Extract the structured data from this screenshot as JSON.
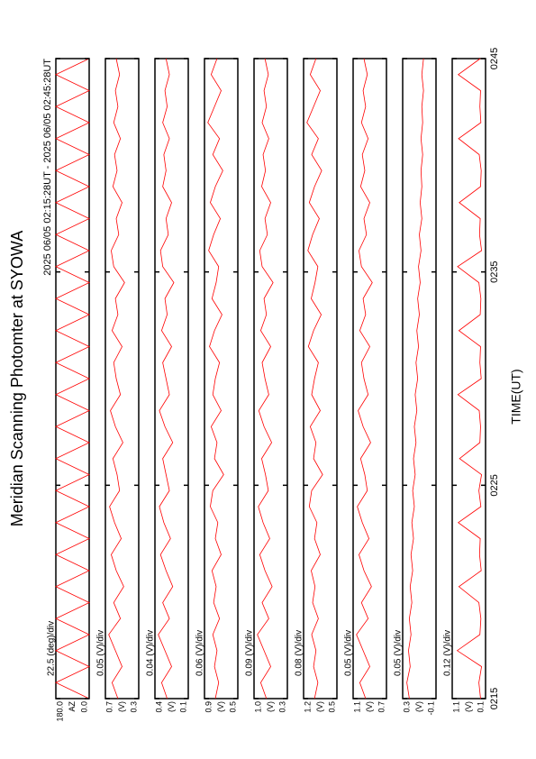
{
  "chart_data": {
    "type": "line",
    "title": "Meridian Scanning Photomter at SYOWA",
    "subtitle": "2025 06/05 02:15:28UT - 2025 06/05 02:45:28UT",
    "x_label": "TIME(UT)",
    "xlim": [
      15,
      45
    ],
    "xticks": [
      {
        "value": 15,
        "label": "0215"
      },
      {
        "value": 25,
        "label": "0225"
      },
      {
        "value": 35,
        "label": "0235"
      },
      {
        "value": 45,
        "label": "0245"
      }
    ],
    "x": [
      15,
      15.75,
      16.5,
      17.25,
      18,
      18.75,
      19.5,
      20.25,
      21,
      21.75,
      22.5,
      23.25,
      24,
      24.75,
      25.5,
      26.25,
      27,
      27.75,
      28.5,
      29.25,
      30,
      30.75,
      31.5,
      32.25,
      33,
      33.75,
      34.5,
      35.25,
      36,
      36.75,
      37.5,
      38.25,
      39,
      39.75,
      40.5,
      41.25,
      42,
      42.75,
      43.5,
      44.25,
      45
    ],
    "panels": [
      {
        "scale": "22.5 (deg)/div",
        "unit": "AZ",
        "color": "#ff0000",
        "ylim": [
          0,
          180
        ],
        "yticks": [
          {
            "value": 0,
            "label": "0.0"
          },
          {
            "value": 180,
            "label": "180.0"
          }
        ],
        "values": [
          0,
          180,
          0,
          180,
          0,
          180,
          0,
          180,
          0,
          180,
          0,
          180,
          0,
          180,
          0,
          180,
          0,
          180,
          0,
          180,
          0,
          180,
          0,
          180,
          0,
          180,
          0,
          180,
          0,
          180,
          0,
          180,
          0,
          180,
          0,
          180,
          0,
          180,
          0,
          180,
          0
        ]
      },
      {
        "scale": "0.05 (V)/div",
        "unit": "(V)",
        "color": "#ff0000",
        "ylim": [
          0.3,
          0.7
        ],
        "yticks": [
          0.3,
          0.7
        ],
        "values": [
          0.55,
          0.62,
          0.5,
          0.58,
          0.66,
          0.52,
          0.6,
          0.48,
          0.57,
          0.63,
          0.51,
          0.59,
          0.65,
          0.53,
          0.56,
          0.61,
          0.49,
          0.58,
          0.64,
          0.52,
          0.57,
          0.6,
          0.5,
          0.62,
          0.55,
          0.58,
          0.47,
          0.6,
          0.63,
          0.54,
          0.57,
          0.5,
          0.61,
          0.56,
          0.59,
          0.52,
          0.6,
          0.55,
          0.58,
          0.53,
          0.57
        ]
      },
      {
        "scale": "0.04 (V)/div",
        "unit": "(V)",
        "color": "#ff0000",
        "ylim": [
          0.1,
          0.4
        ],
        "yticks": [
          0.1,
          0.4
        ],
        "values": [
          0.29,
          0.34,
          0.25,
          0.31,
          0.37,
          0.27,
          0.33,
          0.24,
          0.3,
          0.35,
          0.26,
          0.32,
          0.36,
          0.27,
          0.3,
          0.33,
          0.24,
          0.31,
          0.36,
          0.27,
          0.3,
          0.33,
          0.25,
          0.34,
          0.29,
          0.31,
          0.23,
          0.33,
          0.35,
          0.28,
          0.3,
          0.25,
          0.33,
          0.3,
          0.32,
          0.27,
          0.33,
          0.29,
          0.31,
          0.27,
          0.3
        ]
      },
      {
        "scale": "0.06 (V)/div",
        "unit": "(V)",
        "color": "#ff0000",
        "ylim": [
          0.5,
          0.9
        ],
        "yticks": [
          0.5,
          0.9
        ],
        "values": [
          0.77,
          0.73,
          0.78,
          0.75,
          0.8,
          0.72,
          0.79,
          0.76,
          0.81,
          0.7,
          0.77,
          0.74,
          0.83,
          0.8,
          0.67,
          0.78,
          0.75,
          0.82,
          0.7,
          0.8,
          0.77,
          0.72,
          0.84,
          0.78,
          0.69,
          0.81,
          0.76,
          0.73,
          0.85,
          0.79,
          0.71,
          0.83,
          0.77,
          0.68,
          0.8,
          0.72,
          0.86,
          0.78,
          0.7,
          0.82,
          0.75
        ]
      },
      {
        "scale": "0.09 (V)/div",
        "unit": "(V)",
        "color": "#ff0000",
        "ylim": [
          0.3,
          1.0
        ],
        "yticks": [
          0.3,
          {
            "value": 1.0,
            "label": "1.0"
          }
        ],
        "values": [
          0.74,
          0.86,
          0.65,
          0.79,
          0.93,
          0.69,
          0.83,
          0.62,
          0.77,
          0.88,
          0.67,
          0.81,
          0.91,
          0.7,
          0.76,
          0.84,
          0.63,
          0.79,
          0.9,
          0.69,
          0.77,
          0.83,
          0.65,
          0.86,
          0.74,
          0.79,
          0.6,
          0.83,
          0.88,
          0.72,
          0.77,
          0.65,
          0.84,
          0.76,
          0.81,
          0.69,
          0.83,
          0.74,
          0.79,
          0.7,
          0.77
        ]
      },
      {
        "scale": "0.08 (V)/div",
        "unit": "(V)",
        "color": "#ff0000",
        "ylim": [
          0.5,
          1.2
        ],
        "yticks": [
          0.5,
          1.2
        ],
        "values": [
          0.97,
          0.9,
          0.99,
          0.94,
          1.03,
          0.89,
          1.01,
          0.96,
          1.04,
          0.85,
          0.97,
          0.92,
          1.08,
          1.03,
          0.8,
          0.99,
          0.94,
          1.06,
          0.85,
          1.03,
          0.97,
          0.89,
          1.1,
          0.99,
          0.83,
          1.04,
          0.96,
          0.9,
          1.11,
          1.01,
          0.87,
          1.08,
          0.97,
          0.82,
          1.03,
          0.89,
          1.13,
          0.99,
          0.85,
          1.06,
          0.94
        ]
      },
      {
        "scale": "0.05 (V)/div",
        "unit": "(V)",
        "color": "#ff0000",
        "ylim": [
          0.7,
          1.1
        ],
        "yticks": [
          0.7,
          1.1
        ],
        "values": [
          0.95,
          1.02,
          0.9,
          0.98,
          1.06,
          0.92,
          1.0,
          0.88,
          0.97,
          1.03,
          0.91,
          0.99,
          1.05,
          0.93,
          0.96,
          1.01,
          0.89,
          0.98,
          1.04,
          0.92,
          0.97,
          1.0,
          0.9,
          1.02,
          0.95,
          0.98,
          0.87,
          1.0,
          1.03,
          0.94,
          0.97,
          0.9,
          1.01,
          0.96,
          0.99,
          0.92,
          1.0,
          0.95,
          0.98,
          0.93,
          0.97
        ]
      },
      {
        "scale": "0.05 (V)/div",
        "unit": "(V)",
        "color": "#ff0000",
        "ylim": [
          -0.1,
          0.3
        ],
        "yticks": [
          -0.1,
          0.3
        ],
        "values": [
          0.22,
          0.25,
          0.21,
          0.23,
          0.2,
          0.22,
          0.19,
          0.21,
          0.18,
          0.2,
          0.17,
          0.19,
          0.16,
          0.18,
          0.15,
          0.17,
          0.14,
          0.16,
          0.13,
          0.15,
          0.12,
          0.14,
          0.11,
          0.13,
          0.1,
          0.12,
          0.09,
          0.11,
          0.08,
          0.1,
          0.07,
          0.09,
          0.07,
          0.08,
          0.06,
          0.08,
          0.06,
          0.07,
          0.05,
          0.07,
          0.05
        ]
      },
      {
        "scale": "0.12 (V)/div",
        "unit": "(V)",
        "color": "#ff0000",
        "ylim": [
          0.1,
          1.1
        ],
        "yticks": [
          0.1,
          1.1
        ],
        "values": [
          0.25,
          0.3,
          0.22,
          0.95,
          0.27,
          0.24,
          0.3,
          0.9,
          0.23,
          0.28,
          0.26,
          0.92,
          0.24,
          0.3,
          0.22,
          0.88,
          0.27,
          0.25,
          0.29,
          0.93,
          0.23,
          0.27,
          0.25,
          0.9,
          0.26,
          0.24,
          0.3,
          0.94,
          0.22,
          0.28,
          0.26,
          0.89,
          0.25,
          0.23,
          0.29,
          0.91,
          0.24,
          0.27,
          0.25,
          0.92,
          0.26
        ]
      }
    ]
  }
}
